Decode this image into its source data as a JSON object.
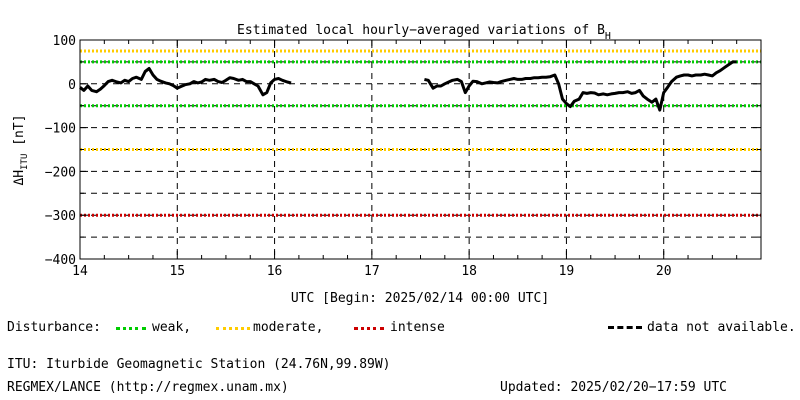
{
  "chart_data": {
    "type": "line",
    "title": "Estimated local hourly−averaged variations of B",
    "title_subscript": "H",
    "ylabel": "ΔH",
    "ylabel_subscript": "ITU",
    "ylabel_unit": " [nT]",
    "xlabel": "UTC [Begin: 2025/02/14 00:00 UTC]",
    "xlim": [
      14,
      21
    ],
    "ylim": [
      -400,
      100
    ],
    "x_ticks": [
      "14",
      "15",
      "16",
      "17",
      "18",
      "19",
      "20"
    ],
    "y_ticks": [
      "100",
      "0",
      "−100",
      "−200",
      "−300",
      "−400"
    ],
    "grid": "dashed",
    "reference_lines": [
      {
        "level": "weak",
        "color": "#00cc00",
        "values": [
          50,
          -50
        ]
      },
      {
        "level": "moderate",
        "color": "#ffcc00",
        "values": [
          75,
          -150
        ]
      },
      {
        "level": "intense",
        "color": "#cc0000",
        "values": [
          -300
        ]
      }
    ],
    "series": [
      {
        "values": [
          [
            14.0,
            -8
          ],
          [
            14.04,
            -15
          ],
          [
            14.08,
            -5
          ],
          [
            14.12,
            -15
          ],
          [
            14.17,
            -18
          ],
          [
            14.21,
            -12
          ],
          [
            14.25,
            -4
          ],
          [
            14.29,
            5
          ],
          [
            14.33,
            8
          ],
          [
            14.38,
            4
          ],
          [
            14.42,
            2
          ],
          [
            14.46,
            8
          ],
          [
            14.5,
            5
          ],
          [
            14.54,
            12
          ],
          [
            14.58,
            15
          ],
          [
            14.63,
            10
          ],
          [
            14.67,
            28
          ],
          [
            14.71,
            35
          ],
          [
            14.75,
            20
          ],
          [
            14.79,
            10
          ],
          [
            14.83,
            6
          ],
          [
            14.88,
            2
          ],
          [
            14.92,
            0
          ],
          [
            14.96,
            -4
          ],
          [
            15.0,
            -10
          ],
          [
            15.04,
            -6
          ],
          [
            15.08,
            -2
          ],
          [
            15.13,
            0
          ],
          [
            15.17,
            5
          ],
          [
            15.21,
            2
          ],
          [
            15.25,
            4
          ],
          [
            15.29,
            10
          ],
          [
            15.33,
            8
          ],
          [
            15.38,
            10
          ],
          [
            15.42,
            5
          ],
          [
            15.46,
            3
          ],
          [
            15.5,
            8
          ],
          [
            15.54,
            14
          ],
          [
            15.58,
            12
          ],
          [
            15.63,
            8
          ],
          [
            15.67,
            10
          ],
          [
            15.71,
            5
          ],
          [
            15.75,
            5
          ],
          [
            15.79,
            0
          ],
          [
            15.83,
            -5
          ],
          [
            15.88,
            -25
          ],
          [
            15.92,
            -20
          ],
          [
            15.96,
            2
          ],
          [
            16.0,
            10
          ],
          [
            16.04,
            12
          ],
          [
            16.08,
            8
          ],
          [
            16.13,
            4
          ],
          [
            16.17,
            2
          ]
        ]
      },
      {
        "values": [
          [
            17.54,
            10
          ],
          [
            17.58,
            8
          ],
          [
            17.63,
            -10
          ],
          [
            17.67,
            -5
          ],
          [
            17.71,
            -5
          ],
          [
            17.75,
            0
          ],
          [
            17.79,
            4
          ],
          [
            17.83,
            8
          ],
          [
            17.88,
            10
          ],
          [
            17.92,
            5
          ],
          [
            17.96,
            -20
          ],
          [
            18.0,
            -5
          ],
          [
            18.04,
            6
          ],
          [
            18.08,
            5
          ],
          [
            18.13,
            0
          ],
          [
            18.17,
            2
          ],
          [
            18.21,
            4
          ],
          [
            18.25,
            3
          ],
          [
            18.29,
            2
          ],
          [
            18.33,
            5
          ],
          [
            18.38,
            8
          ],
          [
            18.42,
            10
          ],
          [
            18.46,
            12
          ],
          [
            18.5,
            10
          ],
          [
            18.54,
            10
          ],
          [
            18.58,
            12
          ],
          [
            18.63,
            12
          ],
          [
            18.67,
            14
          ],
          [
            18.71,
            14
          ],
          [
            18.75,
            15
          ],
          [
            18.79,
            15
          ],
          [
            18.83,
            16
          ],
          [
            18.88,
            20
          ],
          [
            18.92,
            0
          ],
          [
            18.96,
            -35
          ],
          [
            19.0,
            -45
          ],
          [
            19.04,
            -52
          ],
          [
            19.08,
            -40
          ],
          [
            19.13,
            -35
          ],
          [
            19.17,
            -20
          ],
          [
            19.21,
            -22
          ],
          [
            19.25,
            -20
          ],
          [
            19.29,
            -21
          ],
          [
            19.33,
            -25
          ],
          [
            19.38,
            -23
          ],
          [
            19.42,
            -25
          ],
          [
            19.46,
            -23
          ],
          [
            19.5,
            -22
          ],
          [
            19.54,
            -20
          ],
          [
            19.58,
            -20
          ],
          [
            19.63,
            -18
          ],
          [
            19.67,
            -22
          ],
          [
            19.71,
            -20
          ],
          [
            19.75,
            -15
          ],
          [
            19.79,
            -28
          ],
          [
            19.83,
            -35
          ],
          [
            19.88,
            -42
          ],
          [
            19.92,
            -35
          ],
          [
            19.96,
            -60
          ],
          [
            20.0,
            -20
          ],
          [
            20.04,
            -8
          ],
          [
            20.08,
            5
          ],
          [
            20.13,
            15
          ],
          [
            20.17,
            18
          ],
          [
            20.21,
            20
          ],
          [
            20.25,
            20
          ],
          [
            20.29,
            18
          ],
          [
            20.33,
            20
          ],
          [
            20.38,
            20
          ],
          [
            20.42,
            22
          ],
          [
            20.46,
            20
          ],
          [
            20.5,
            18
          ],
          [
            20.54,
            25
          ],
          [
            20.58,
            30
          ],
          [
            20.63,
            38
          ],
          [
            20.67,
            44
          ],
          [
            20.71,
            50
          ],
          [
            20.75,
            50
          ]
        ]
      }
    ]
  },
  "legend": {
    "heading": "Disturbance:",
    "weak_label": "weak,",
    "moderate_label": "moderate,",
    "intense_label": "intense",
    "na_label": "data not available.",
    "weak_color": "#00cc00",
    "moderate_color": "#ffcc00",
    "intense_color": "#cc0000"
  },
  "footer": {
    "station": "ITU: Iturbide Geomagnetic Station (24.76N,99.89W)",
    "source": "REGMEX/LANCE (http://regmex.unam.mx)",
    "updated": "Updated: 2025/02/20−17:59 UTC"
  }
}
